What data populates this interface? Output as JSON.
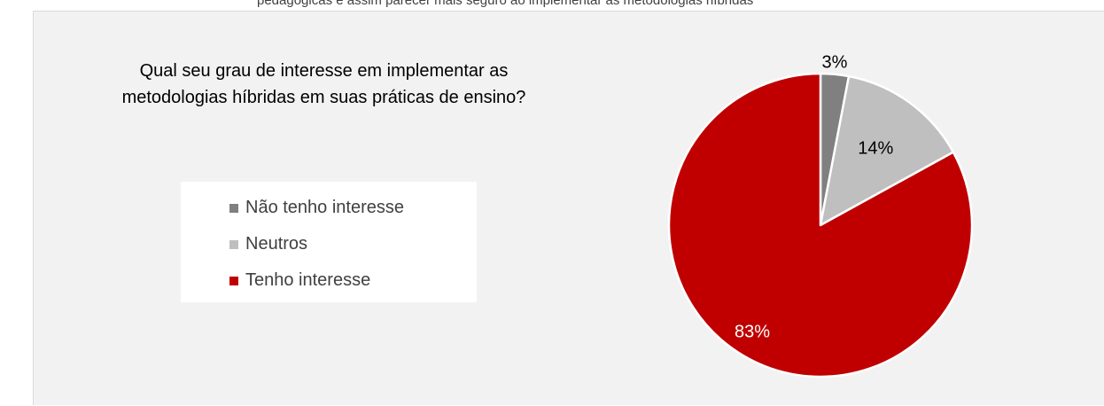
{
  "page": {
    "top_text": "pedagógicas e assim parecer mais seguro ao implementar as metodologias híbridas"
  },
  "chart_data": {
    "type": "pie",
    "title_lines": [
      "Qual seu grau de interesse em implementar as",
      "metodologias híbridas em suas práticas de ensino?"
    ],
    "categories": [
      "Não tenho interesse",
      "Neutros",
      "Tenho interesse"
    ],
    "values": [
      3,
      14,
      83
    ],
    "data_labels": [
      "3%",
      "14%",
      "83%"
    ],
    "colors": [
      "#808080",
      "#bfbfbf",
      "#c00000"
    ],
    "label_colors": [
      "#000000",
      "#000000",
      "#ffffff"
    ],
    "legend_position": "left",
    "start_angle": "12 o'clock, clockwise"
  }
}
